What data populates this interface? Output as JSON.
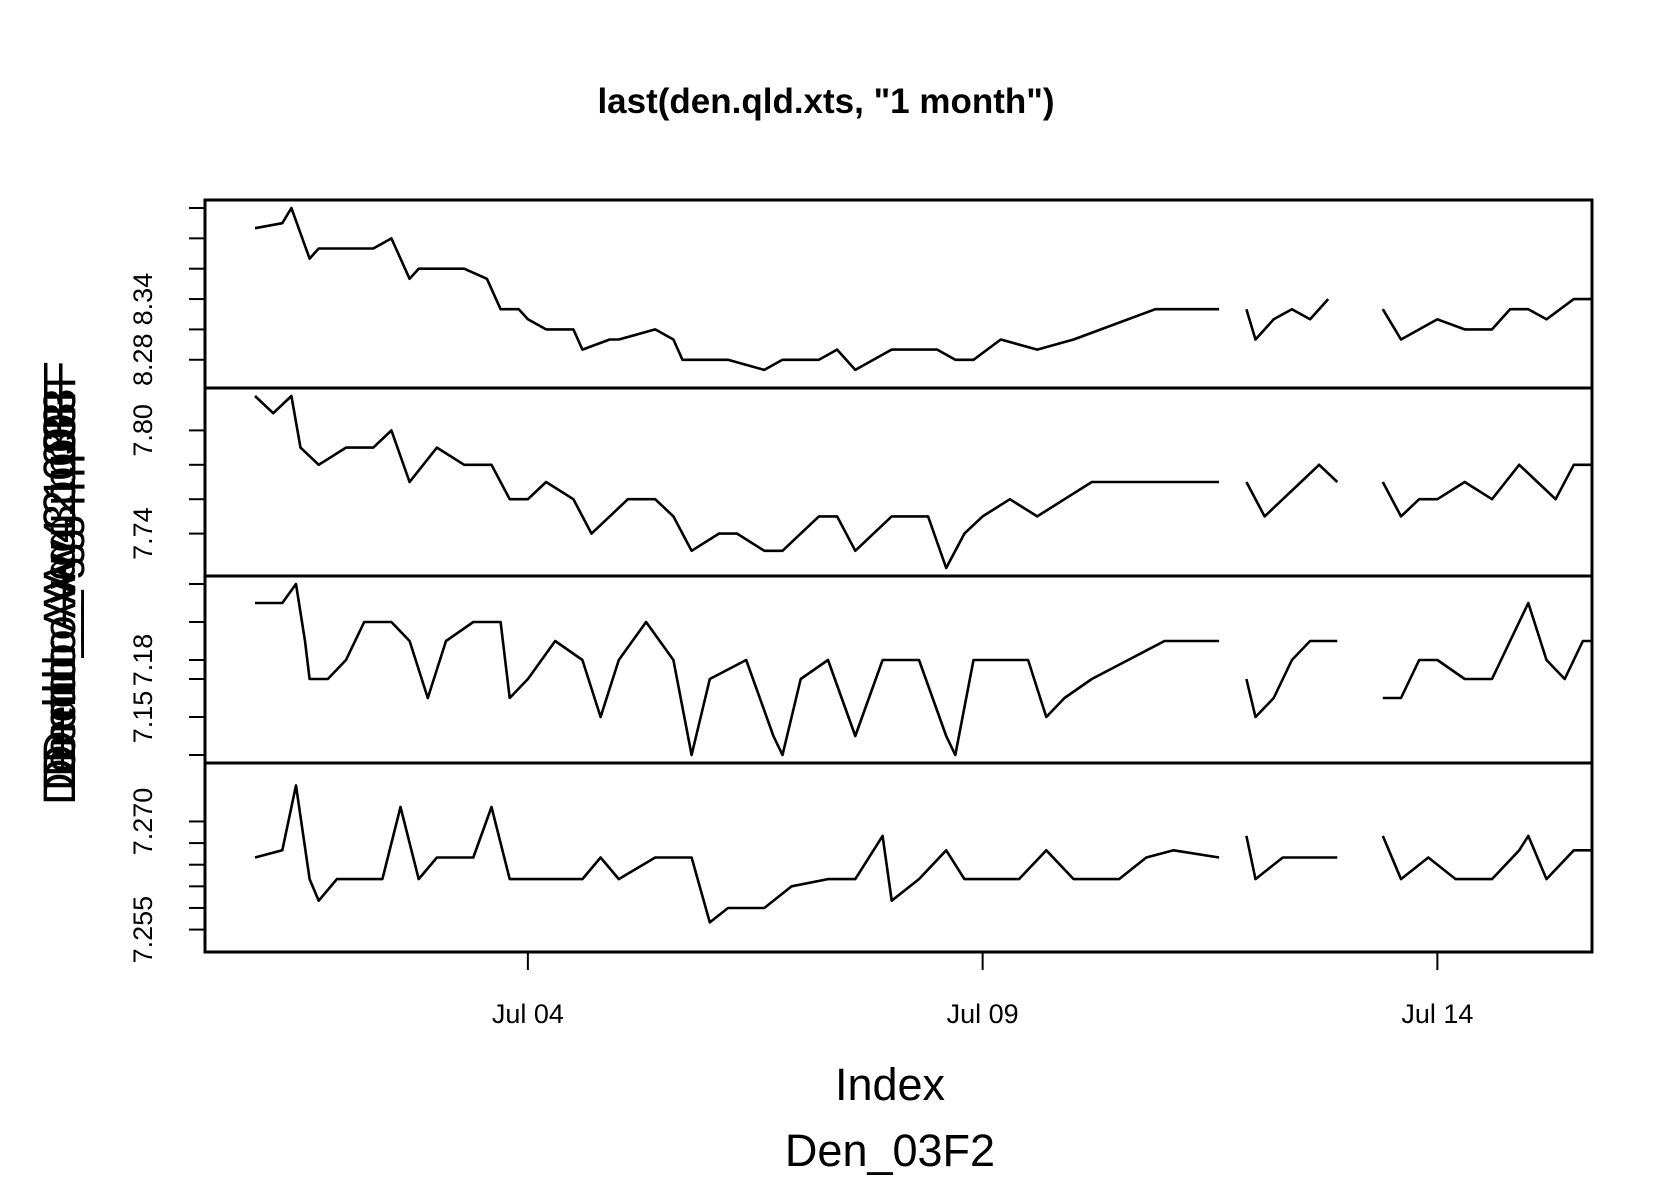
{
  "chart_data": {
    "type": "line",
    "title": "last(den.qld.xts, \"1 month\")",
    "xlabel": "Index",
    "sub_xlabel": "Den_03F2",
    "ylabels": [
      "Dendro_Avg.1.p03F",
      "Dendro_Avg.2.p03F",
      "Dendro_Avg.3.p03F",
      "Dendro_Avg.4.p03F"
    ],
    "x_ticks": [
      "Jul 04",
      "Jul 09",
      "Jul 14"
    ],
    "x_tick_values": [
      4,
      9,
      14
    ],
    "xlim": [
      0.45,
      15.7
    ],
    "line_color": "#000000",
    "frame_color": "#000000",
    "grid": false,
    "panels": [
      {
        "ylim": [
          8.26,
          8.43
        ],
        "y_ticks": [
          "8.28",
          "8.34"
        ],
        "y_tick_values": [
          8.28,
          8.34
        ],
        "y_minor_ticks": [
          8.28,
          8.31,
          8.34,
          8.37,
          8.4,
          8.43
        ],
        "segments": [
          [
            [
              1.0,
              8.41
            ],
            [
              1.3,
              8.415
            ],
            [
              1.4,
              8.43
            ],
            [
              1.5,
              8.405
            ],
            [
              1.6,
              8.38
            ],
            [
              1.7,
              8.39
            ],
            [
              2.0,
              8.39
            ],
            [
              2.3,
              8.39
            ],
            [
              2.5,
              8.4
            ],
            [
              2.7,
              8.36
            ],
            [
              2.8,
              8.37
            ],
            [
              3.0,
              8.37
            ],
            [
              3.3,
              8.37
            ],
            [
              3.55,
              8.36
            ],
            [
              3.7,
              8.33
            ],
            [
              3.9,
              8.33
            ],
            [
              4.0,
              8.32
            ],
            [
              4.2,
              8.31
            ],
            [
              4.5,
              8.31
            ],
            [
              4.6,
              8.29
            ],
            [
              4.9,
              8.3
            ],
            [
              5.0,
              8.3
            ],
            [
              5.4,
              8.31
            ],
            [
              5.6,
              8.3
            ],
            [
              5.7,
              8.28
            ],
            [
              6.0,
              8.28
            ],
            [
              6.2,
              8.28
            ],
            [
              6.6,
              8.27
            ],
            [
              6.8,
              8.28
            ],
            [
              7.2,
              8.28
            ],
            [
              7.4,
              8.29
            ],
            [
              7.6,
              8.27
            ],
            [
              8.0,
              8.29
            ],
            [
              8.5,
              8.29
            ],
            [
              8.7,
              8.28
            ],
            [
              8.9,
              8.28
            ],
            [
              9.2,
              8.3
            ],
            [
              9.6,
              8.29
            ],
            [
              10.0,
              8.3
            ],
            [
              10.3,
              8.31
            ],
            [
              10.9,
              8.33
            ],
            [
              11.3,
              8.33
            ],
            [
              11.6,
              8.33
            ]
          ],
          [
            [
              11.9,
              8.33
            ],
            [
              12.0,
              8.3
            ],
            [
              12.2,
              8.32
            ],
            [
              12.4,
              8.33
            ],
            [
              12.6,
              8.32
            ],
            [
              12.8,
              8.34
            ]
          ],
          [
            [
              13.4,
              8.33
            ],
            [
              13.6,
              8.3
            ],
            [
              13.8,
              8.31
            ],
            [
              14.0,
              8.32
            ],
            [
              14.3,
              8.31
            ],
            [
              14.6,
              8.31
            ],
            [
              14.8,
              8.33
            ],
            [
              15.0,
              8.33
            ],
            [
              15.2,
              8.32
            ],
            [
              15.5,
              8.34
            ],
            [
              15.7,
              8.34
            ]
          ]
        ]
      },
      {
        "ylim": [
          7.72,
          7.82
        ],
        "y_ticks": [
          "7.74",
          "7.80"
        ],
        "y_tick_values": [
          7.74,
          7.8
        ],
        "y_minor_ticks": [
          7.74,
          7.76,
          7.78,
          7.8
        ],
        "segments": [
          [
            [
              1.0,
              7.82
            ],
            [
              1.2,
              7.81
            ],
            [
              1.4,
              7.82
            ],
            [
              1.5,
              7.79
            ],
            [
              1.7,
              7.78
            ],
            [
              2.0,
              7.79
            ],
            [
              2.3,
              7.79
            ],
            [
              2.5,
              7.8
            ],
            [
              2.7,
              7.77
            ],
            [
              3.0,
              7.79
            ],
            [
              3.3,
              7.78
            ],
            [
              3.6,
              7.78
            ],
            [
              3.8,
              7.76
            ],
            [
              4.0,
              7.76
            ],
            [
              4.2,
              7.77
            ],
            [
              4.5,
              7.76
            ],
            [
              4.7,
              7.74
            ],
            [
              4.9,
              7.75
            ],
            [
              5.1,
              7.76
            ],
            [
              5.4,
              7.76
            ],
            [
              5.6,
              7.75
            ],
            [
              5.8,
              7.73
            ],
            [
              6.1,
              7.74
            ],
            [
              6.3,
              7.74
            ],
            [
              6.6,
              7.73
            ],
            [
              6.8,
              7.73
            ],
            [
              7.0,
              7.74
            ],
            [
              7.2,
              7.75
            ],
            [
              7.4,
              7.75
            ],
            [
              7.6,
              7.73
            ],
            [
              7.8,
              7.74
            ],
            [
              8.0,
              7.75
            ],
            [
              8.4,
              7.75
            ],
            [
              8.6,
              7.72
            ],
            [
              8.8,
              7.74
            ],
            [
              9.0,
              7.75
            ],
            [
              9.3,
              7.76
            ],
            [
              9.6,
              7.75
            ],
            [
              9.9,
              7.76
            ],
            [
              10.2,
              7.77
            ],
            [
              10.6,
              7.77
            ],
            [
              11.0,
              7.77
            ],
            [
              11.6,
              7.77
            ]
          ],
          [
            [
              11.9,
              7.77
            ],
            [
              12.1,
              7.75
            ],
            [
              12.3,
              7.76
            ],
            [
              12.5,
              7.77
            ],
            [
              12.7,
              7.78
            ],
            [
              12.9,
              7.77
            ]
          ],
          [
            [
              13.4,
              7.77
            ],
            [
              13.6,
              7.75
            ],
            [
              13.8,
              7.76
            ],
            [
              14.0,
              7.76
            ],
            [
              14.3,
              7.77
            ],
            [
              14.6,
              7.76
            ],
            [
              14.9,
              7.78
            ],
            [
              15.1,
              7.77
            ],
            [
              15.3,
              7.76
            ],
            [
              15.5,
              7.78
            ],
            [
              15.7,
              7.78
            ]
          ]
        ]
      },
      {
        "ylim": [
          7.13,
          7.22
        ],
        "y_ticks": [
          "7.15",
          "7.18"
        ],
        "y_tick_values": [
          7.15,
          7.18
        ],
        "y_minor_ticks": [
          7.13,
          7.15,
          7.17,
          7.18,
          7.2,
          7.22
        ],
        "segments": [
          [
            [
              1.0,
              7.21
            ],
            [
              1.3,
              7.21
            ],
            [
              1.45,
              7.22
            ],
            [
              1.55,
              7.19
            ],
            [
              1.6,
              7.17
            ],
            [
              1.8,
              7.17
            ],
            [
              2.0,
              7.18
            ],
            [
              2.2,
              7.2
            ],
            [
              2.5,
              7.2
            ],
            [
              2.7,
              7.19
            ],
            [
              2.9,
              7.16
            ],
            [
              3.1,
              7.19
            ],
            [
              3.4,
              7.2
            ],
            [
              3.7,
              7.2
            ],
            [
              3.8,
              7.16
            ],
            [
              4.0,
              7.17
            ],
            [
              4.3,
              7.19
            ],
            [
              4.6,
              7.18
            ],
            [
              4.8,
              7.15
            ],
            [
              5.0,
              7.18
            ],
            [
              5.3,
              7.2
            ],
            [
              5.6,
              7.18
            ],
            [
              5.8,
              7.13
            ],
            [
              6.0,
              7.17
            ],
            [
              6.4,
              7.18
            ],
            [
              6.7,
              7.14
            ],
            [
              6.8,
              7.13
            ],
            [
              7.0,
              7.17
            ],
            [
              7.3,
              7.18
            ],
            [
              7.6,
              7.14
            ],
            [
              7.9,
              7.18
            ],
            [
              8.3,
              7.18
            ],
            [
              8.6,
              7.14
            ],
            [
              8.7,
              7.13
            ],
            [
              8.9,
              7.18
            ],
            [
              9.2,
              7.18
            ],
            [
              9.5,
              7.18
            ],
            [
              9.7,
              7.15
            ],
            [
              9.9,
              7.16
            ],
            [
              10.2,
              7.17
            ],
            [
              10.6,
              7.18
            ],
            [
              11.0,
              7.19
            ],
            [
              11.6,
              7.19
            ]
          ],
          [
            [
              11.9,
              7.17
            ],
            [
              12.0,
              7.15
            ],
            [
              12.2,
              7.16
            ],
            [
              12.4,
              7.18
            ],
            [
              12.6,
              7.19
            ],
            [
              12.9,
              7.19
            ]
          ],
          [
            [
              13.4,
              7.16
            ],
            [
              13.6,
              7.16
            ],
            [
              13.8,
              7.18
            ],
            [
              14.0,
              7.18
            ],
            [
              14.3,
              7.17
            ],
            [
              14.6,
              7.17
            ],
            [
              14.8,
              7.19
            ],
            [
              15.0,
              7.21
            ],
            [
              15.2,
              7.18
            ],
            [
              15.4,
              7.17
            ],
            [
              15.6,
              7.19
            ],
            [
              15.7,
              7.19
            ]
          ]
        ]
      },
      {
        "ylim": [
          7.253,
          7.277
        ],
        "y_ticks": [
          "7.255",
          "7.270"
        ],
        "y_tick_values": [
          7.255,
          7.27
        ],
        "y_minor_ticks": [
          7.255,
          7.258,
          7.261,
          7.264,
          7.267,
          7.27
        ],
        "segments": [
          [
            [
              1.0,
              7.265
            ],
            [
              1.3,
              7.266
            ],
            [
              1.45,
              7.275
            ],
            [
              1.6,
              7.262
            ],
            [
              1.7,
              7.259
            ],
            [
              1.9,
              7.262
            ],
            [
              2.4,
              7.262
            ],
            [
              2.6,
              7.272
            ],
            [
              2.8,
              7.262
            ],
            [
              3.0,
              7.265
            ],
            [
              3.4,
              7.265
            ],
            [
              3.6,
              7.272
            ],
            [
              3.8,
              7.262
            ],
            [
              4.2,
              7.262
            ],
            [
              4.6,
              7.262
            ],
            [
              4.8,
              7.265
            ],
            [
              5.0,
              7.262
            ],
            [
              5.4,
              7.265
            ],
            [
              5.8,
              7.265
            ],
            [
              6.0,
              7.256
            ],
            [
              6.2,
              7.258
            ],
            [
              6.6,
              7.258
            ],
            [
              6.9,
              7.261
            ],
            [
              7.3,
              7.262
            ],
            [
              7.6,
              7.262
            ],
            [
              7.9,
              7.268
            ],
            [
              8.0,
              7.259
            ],
            [
              8.3,
              7.262
            ],
            [
              8.6,
              7.266
            ],
            [
              8.8,
              7.262
            ],
            [
              9.0,
              7.262
            ],
            [
              9.4,
              7.262
            ],
            [
              9.7,
              7.266
            ],
            [
              10.0,
              7.262
            ],
            [
              10.5,
              7.262
            ],
            [
              10.8,
              7.265
            ],
            [
              11.1,
              7.266
            ],
            [
              11.6,
              7.265
            ]
          ],
          [
            [
              11.9,
              7.268
            ],
            [
              12.0,
              7.262
            ],
            [
              12.3,
              7.265
            ],
            [
              12.6,
              7.265
            ],
            [
              12.9,
              7.265
            ]
          ],
          [
            [
              13.4,
              7.268
            ],
            [
              13.6,
              7.262
            ],
            [
              13.9,
              7.265
            ],
            [
              14.2,
              7.262
            ],
            [
              14.6,
              7.262
            ],
            [
              14.9,
              7.266
            ],
            [
              15.0,
              7.268
            ],
            [
              15.2,
              7.262
            ],
            [
              15.5,
              7.266
            ],
            [
              15.7,
              7.266
            ]
          ]
        ]
      }
    ]
  }
}
